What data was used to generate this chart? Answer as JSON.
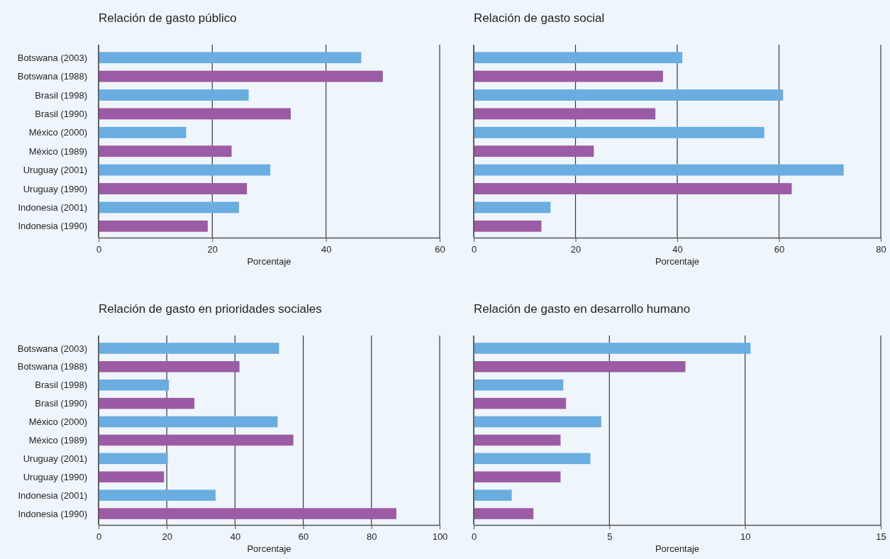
{
  "chart_data": [
    {
      "type": "bar",
      "orientation": "horizontal",
      "title": "Relación de gasto público",
      "xlabel": "Porcentaje",
      "categories": [
        "Botswana (2003)",
        "Botswana (1988)",
        "Brasil (1998)",
        "Brasil (1990)",
        "México (2000)",
        "México (1989)",
        "Uruguay (2001)",
        "Uruguay (1990)",
        "Indonesia (2001)",
        "Indonesia (1990)"
      ],
      "values": [
        46.2,
        50.0,
        26.4,
        33.8,
        15.4,
        23.4,
        30.2,
        26.1,
        24.7,
        19.2
      ],
      "colors": [
        "#6aade0",
        "#9b5ba5",
        "#6aade0",
        "#9b5ba5",
        "#6aade0",
        "#9b5ba5",
        "#6aade0",
        "#9b5ba5",
        "#6aade0",
        "#9b5ba5"
      ],
      "xlim": [
        0,
        60
      ],
      "xticks": [
        0,
        20,
        40,
        60
      ],
      "grid": "x"
    },
    {
      "type": "bar",
      "orientation": "horizontal",
      "title": "Relación de gasto social",
      "xlabel": "Porcentaje",
      "categories": [
        null,
        null,
        null,
        null,
        null,
        null,
        null,
        null,
        null,
        null
      ],
      "values": [
        41.0,
        37.2,
        60.8,
        35.7,
        57.1,
        23.6,
        72.7,
        62.5,
        15.1,
        13.3
      ],
      "colors": [
        "#6aade0",
        "#9b5ba5",
        "#6aade0",
        "#9b5ba5",
        "#6aade0",
        "#9b5ba5",
        "#6aade0",
        "#9b5ba5",
        "#6aade0",
        "#9b5ba5"
      ],
      "xlim": [
        0,
        80
      ],
      "xticks": [
        0,
        20,
        40,
        60,
        80
      ],
      "grid": "x",
      "tick_labels": "x"
    },
    {
      "type": "bar",
      "orientation": "horizontal",
      "title": "Relación de gasto en prioridades sociales",
      "xlabel": "Porcentaje",
      "categories": [
        "Botswana (2003)",
        "Botswana (1988)",
        "Brasil (1998)",
        "Brasil (1990)",
        "México (2000)",
        "México (1989)",
        "Uruguay (2001)",
        "Uruguay (1990)",
        "Indonesia (2001)",
        "Indonesia (1990)"
      ],
      "values": [
        52.9,
        41.3,
        20.6,
        28.1,
        52.5,
        57.1,
        20.3,
        19.2,
        34.3,
        87.3
      ],
      "colors": [
        "#6aade0",
        "#9b5ba5",
        "#6aade0",
        "#9b5ba5",
        "#6aade0",
        "#9b5ba5",
        "#6aade0",
        "#9b5ba5",
        "#6aade0",
        "#9b5ba5"
      ],
      "xlim": [
        0,
        100
      ],
      "xticks": [
        0,
        20,
        40,
        60,
        80,
        100
      ],
      "grid": "x"
    },
    {
      "type": "bar",
      "orientation": "horizontal",
      "title": "Relación de gasto en desarrollo humano",
      "xlabel": "Porcentaje",
      "categories": [
        null,
        null,
        null,
        null,
        null,
        null,
        null,
        null,
        null,
        null
      ],
      "values": [
        10.2,
        7.8,
        3.3,
        3.4,
        4.7,
        3.2,
        4.3,
        3.2,
        1.4,
        2.2
      ],
      "colors": [
        "#6aade0",
        "#9b5ba5",
        "#6aade0",
        "#9b5ba5",
        "#6aade0",
        "#9b5ba5",
        "#6aade0",
        "#9b5ba5",
        "#6aade0",
        "#9b5ba5"
      ],
      "xlim": [
        0,
        15
      ],
      "xticks": [
        0,
        5,
        10,
        15
      ],
      "grid": "x",
      "tick_labels": "x"
    }
  ]
}
